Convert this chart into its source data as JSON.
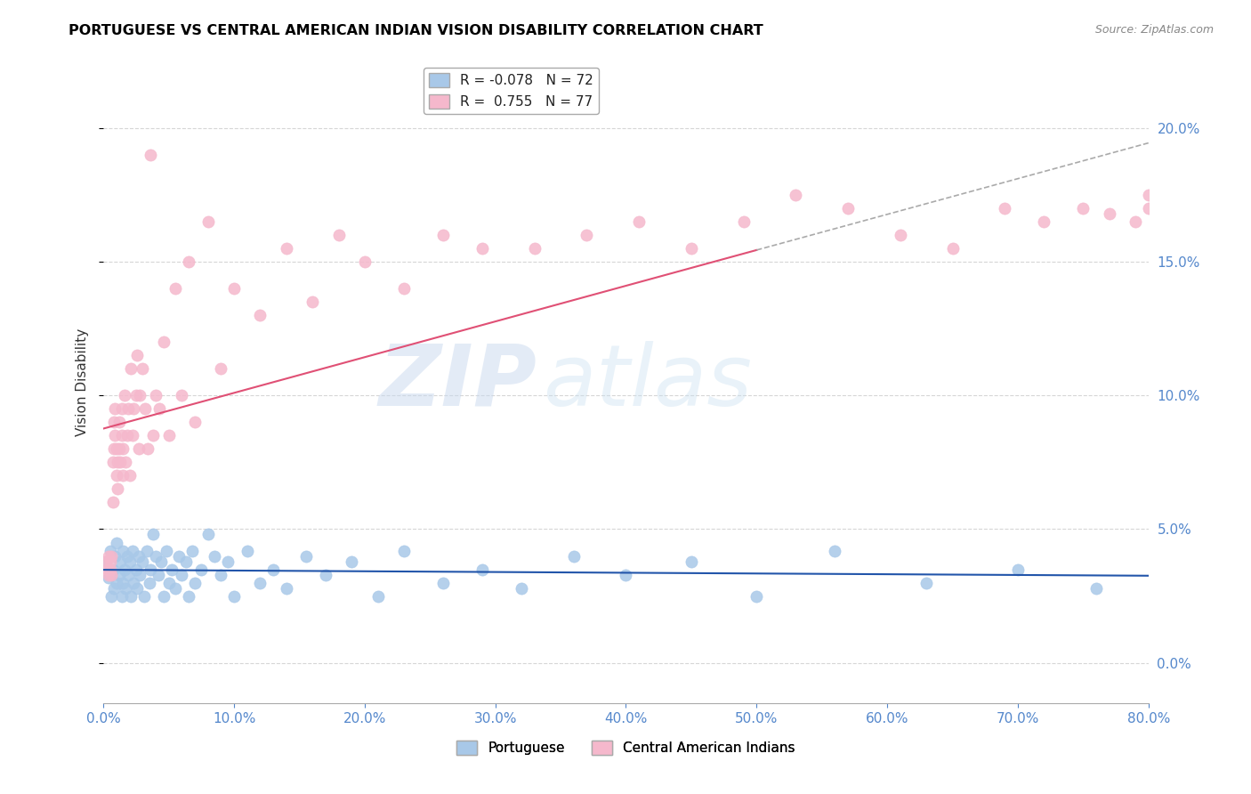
{
  "title": "PORTUGUESE VS CENTRAL AMERICAN INDIAN VISION DISABILITY CORRELATION CHART",
  "source": "Source: ZipAtlas.com",
  "ylabel": "Vision Disability",
  "legend_entries": [
    {
      "label": "Portuguese",
      "color": "#a8c8e8",
      "line_color": "#2255aa",
      "R": -0.078,
      "N": 72
    },
    {
      "label": "Central American Indians",
      "color": "#f5b8cc",
      "line_color": "#e05075",
      "R": 0.755,
      "N": 77
    }
  ],
  "xlim": [
    0.0,
    0.8
  ],
  "ylim": [
    -0.015,
    0.225
  ],
  "background_color": "#ffffff",
  "grid_color": "#cccccc",
  "watermark_zip": "ZIP",
  "watermark_atlas": "atlas",
  "right_axis_color": "#5588cc",
  "portuguese_x": [
    0.002,
    0.004,
    0.005,
    0.006,
    0.007,
    0.008,
    0.009,
    0.01,
    0.01,
    0.012,
    0.013,
    0.014,
    0.015,
    0.015,
    0.016,
    0.017,
    0.018,
    0.019,
    0.02,
    0.021,
    0.022,
    0.023,
    0.025,
    0.026,
    0.027,
    0.028,
    0.03,
    0.031,
    0.033,
    0.035,
    0.036,
    0.038,
    0.04,
    0.042,
    0.044,
    0.046,
    0.048,
    0.05,
    0.052,
    0.055,
    0.058,
    0.06,
    0.063,
    0.065,
    0.068,
    0.07,
    0.075,
    0.08,
    0.085,
    0.09,
    0.095,
    0.1,
    0.11,
    0.12,
    0.13,
    0.14,
    0.155,
    0.17,
    0.19,
    0.21,
    0.23,
    0.26,
    0.29,
    0.32,
    0.36,
    0.4,
    0.45,
    0.5,
    0.56,
    0.63,
    0.7,
    0.76
  ],
  "portuguese_y": [
    0.038,
    0.032,
    0.042,
    0.025,
    0.035,
    0.028,
    0.04,
    0.03,
    0.045,
    0.033,
    0.038,
    0.025,
    0.042,
    0.03,
    0.035,
    0.028,
    0.04,
    0.033,
    0.038,
    0.025,
    0.042,
    0.03,
    0.035,
    0.028,
    0.04,
    0.033,
    0.038,
    0.025,
    0.042,
    0.03,
    0.035,
    0.048,
    0.04,
    0.033,
    0.038,
    0.025,
    0.042,
    0.03,
    0.035,
    0.028,
    0.04,
    0.033,
    0.038,
    0.025,
    0.042,
    0.03,
    0.035,
    0.048,
    0.04,
    0.033,
    0.038,
    0.025,
    0.042,
    0.03,
    0.035,
    0.028,
    0.04,
    0.033,
    0.038,
    0.025,
    0.042,
    0.03,
    0.035,
    0.028,
    0.04,
    0.033,
    0.038,
    0.025,
    0.042,
    0.03,
    0.035,
    0.028
  ],
  "caindian_x": [
    0.002,
    0.003,
    0.004,
    0.004,
    0.005,
    0.005,
    0.006,
    0.006,
    0.007,
    0.007,
    0.008,
    0.008,
    0.009,
    0.009,
    0.01,
    0.01,
    0.011,
    0.011,
    0.012,
    0.012,
    0.013,
    0.014,
    0.014,
    0.015,
    0.015,
    0.016,
    0.017,
    0.018,
    0.019,
    0.02,
    0.021,
    0.022,
    0.023,
    0.025,
    0.026,
    0.027,
    0.028,
    0.03,
    0.032,
    0.034,
    0.036,
    0.038,
    0.04,
    0.043,
    0.046,
    0.05,
    0.055,
    0.06,
    0.065,
    0.07,
    0.08,
    0.09,
    0.1,
    0.12,
    0.14,
    0.16,
    0.18,
    0.2,
    0.23,
    0.26,
    0.29,
    0.33,
    0.37,
    0.41,
    0.45,
    0.49,
    0.53,
    0.57,
    0.61,
    0.65,
    0.69,
    0.72,
    0.75,
    0.77,
    0.79,
    0.8,
    0.8
  ],
  "caindian_y": [
    0.038,
    0.035,
    0.04,
    0.033,
    0.035,
    0.038,
    0.04,
    0.033,
    0.06,
    0.075,
    0.08,
    0.09,
    0.085,
    0.095,
    0.07,
    0.08,
    0.075,
    0.065,
    0.08,
    0.09,
    0.075,
    0.085,
    0.095,
    0.07,
    0.08,
    0.1,
    0.075,
    0.085,
    0.095,
    0.07,
    0.11,
    0.085,
    0.095,
    0.1,
    0.115,
    0.08,
    0.1,
    0.11,
    0.095,
    0.08,
    0.19,
    0.085,
    0.1,
    0.095,
    0.12,
    0.085,
    0.14,
    0.1,
    0.15,
    0.09,
    0.165,
    0.11,
    0.14,
    0.13,
    0.155,
    0.135,
    0.16,
    0.15,
    0.14,
    0.16,
    0.155,
    0.155,
    0.16,
    0.165,
    0.155,
    0.165,
    0.175,
    0.17,
    0.16,
    0.155,
    0.17,
    0.165,
    0.17,
    0.168,
    0.165,
    0.17,
    0.175
  ]
}
